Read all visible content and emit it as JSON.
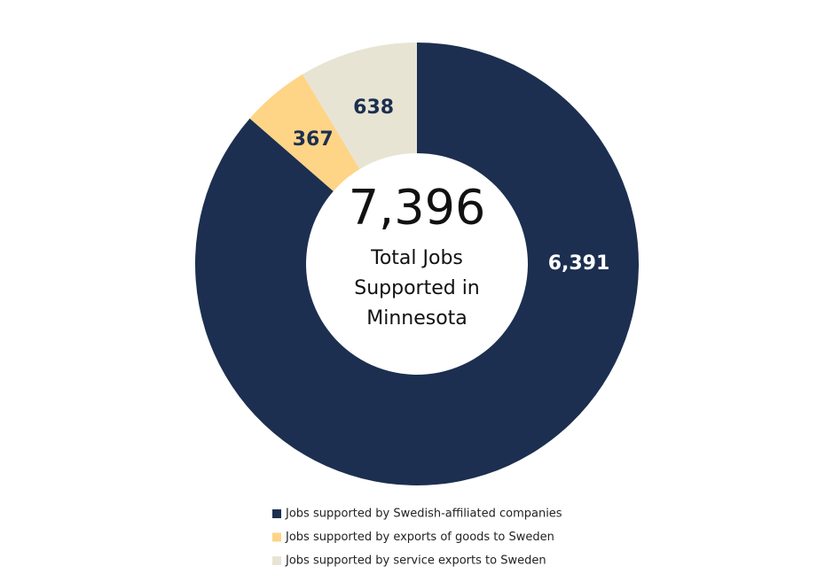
{
  "chart_data": {
    "type": "donut",
    "center_total": {
      "value": 7396,
      "label": "7,396"
    },
    "center_caption": [
      "Total Jobs",
      "Supported in",
      "Minnesota"
    ],
    "categories": [
      "Jobs supported by Swedish-affiliated companies",
      "Jobs supported by exports of goods to Sweden",
      "Jobs supported by service exports to Sweden"
    ],
    "values": [
      6391,
      367,
      638
    ],
    "value_labels": [
      "6,391",
      "367",
      "638"
    ],
    "colors": [
      "#1c2f50",
      "#fed486",
      "#e8e4d4"
    ],
    "label_colors": [
      "#ffffff",
      "#1c2f50",
      "#1c2f50"
    ],
    "legend": "bottom"
  }
}
